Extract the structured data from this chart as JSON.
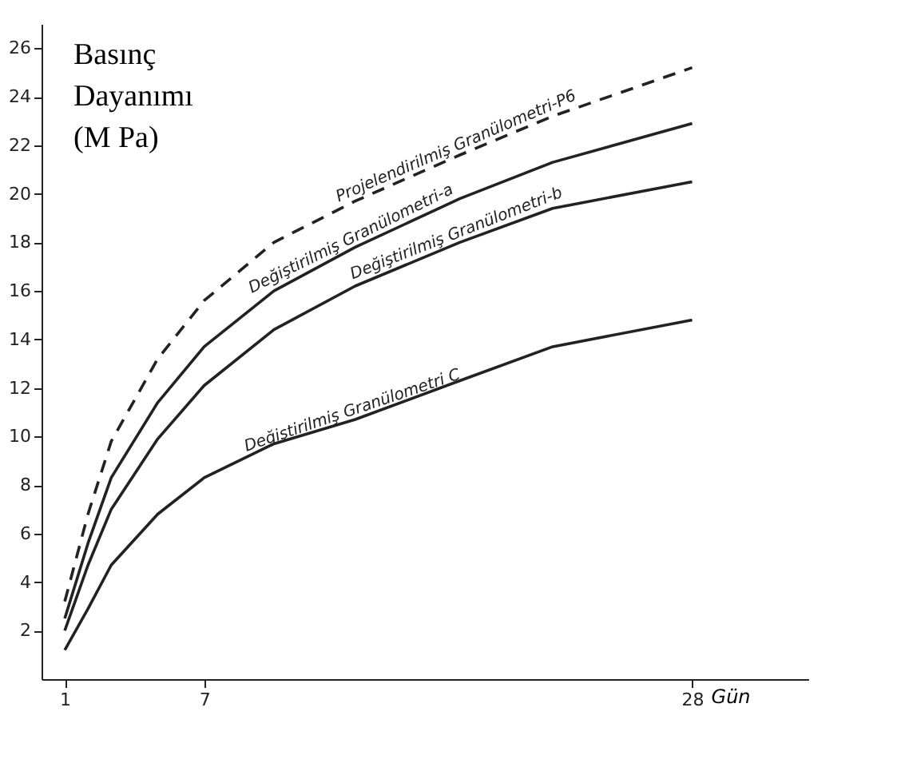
{
  "chart_data": {
    "type": "line",
    "ylabel": "Basınç\nDayanımı\n(M Pa)",
    "xlabel": "Gün",
    "x": [
      1,
      2,
      3,
      5,
      7,
      10,
      13.5,
      18,
      22,
      28
    ],
    "series": [
      {
        "name": "Projelendirilmiş Granülometri-P6",
        "color": "#222222",
        "line_style": "dashed",
        "values": [
          3.2,
          6.8,
          9.8,
          13.2,
          15.6,
          18.0,
          19.7,
          21.6,
          23.2,
          25.2
        ]
      },
      {
        "name": "Değiştirilmiş Granülometri-a",
        "color": "#222222",
        "line_style": "solid",
        "values": [
          2.5,
          5.6,
          8.3,
          11.4,
          13.7,
          16.0,
          17.8,
          19.8,
          21.3,
          22.9
        ]
      },
      {
        "name": "Değiştirilmiş Granülometri-b",
        "color": "#222222",
        "line_style": "solid",
        "values": [
          2.0,
          4.7,
          7.0,
          9.9,
          12.1,
          14.4,
          16.2,
          18.0,
          19.4,
          20.5
        ]
      },
      {
        "name": "Değiştirilmiş Granülometri C",
        "color": "#222222",
        "line_style": "solid",
        "values": [
          1.2,
          2.9,
          4.7,
          6.8,
          8.3,
          9.7,
          10.7,
          12.3,
          13.7,
          14.8
        ]
      }
    ],
    "xlim": [
      0,
      33
    ],
    "ylim": [
      0,
      27
    ],
    "xticks": [
      1,
      7,
      28
    ],
    "yticks": [
      2,
      4,
      6,
      8,
      10,
      12,
      14,
      16,
      18,
      20,
      22,
      24,
      26
    ],
    "grid": false,
    "marker": "none"
  }
}
